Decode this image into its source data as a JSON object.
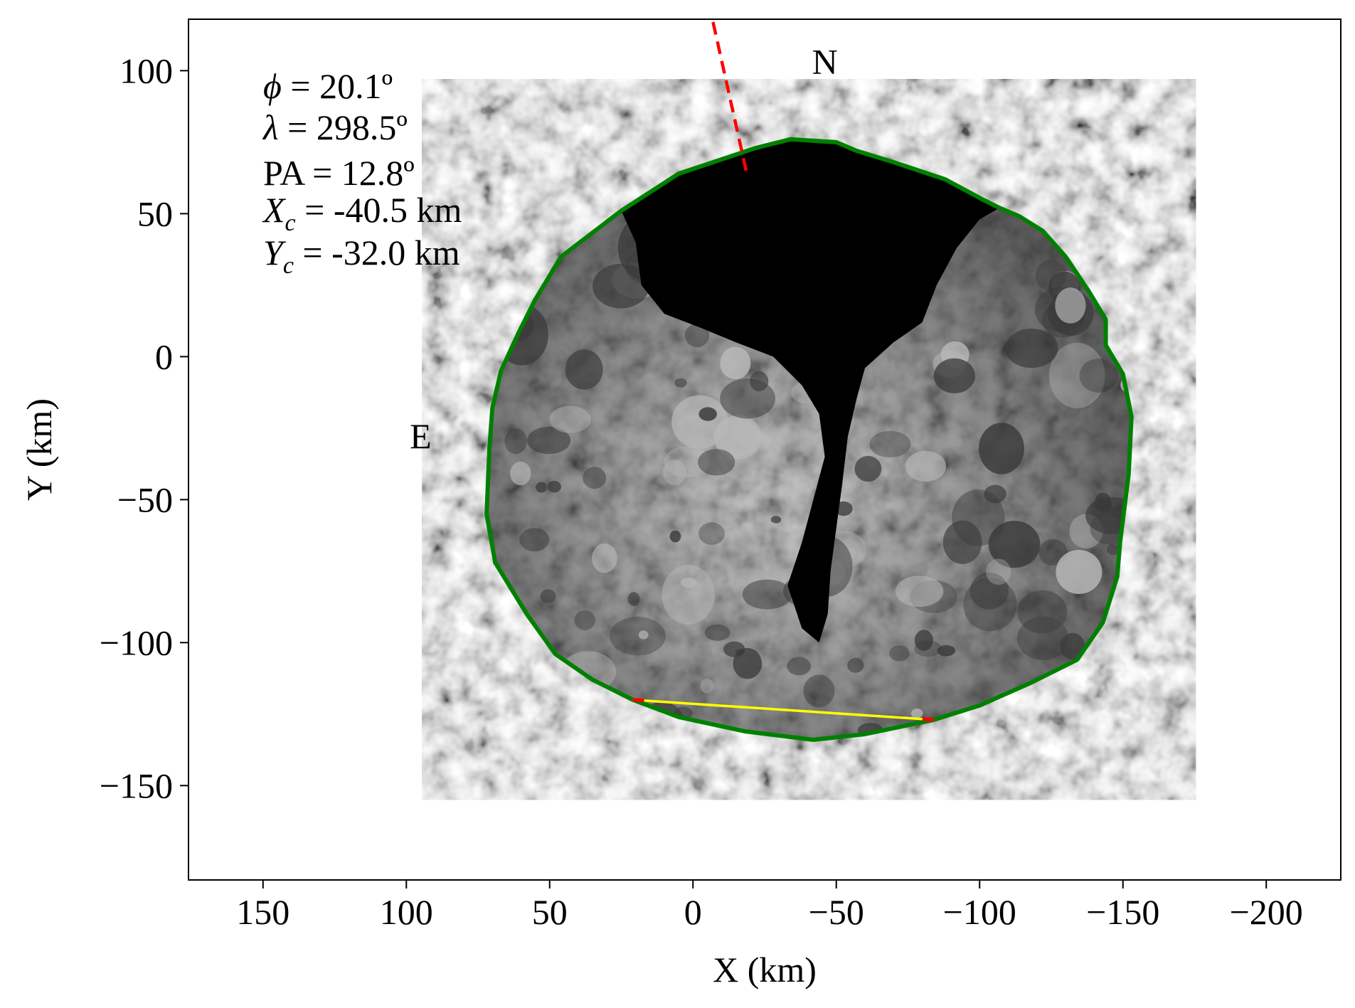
{
  "chart_data": {
    "type": "scatter",
    "title": "",
    "xlabel": "X (km)",
    "ylabel": "Y (km)",
    "xlim": [
      176,
      -226
    ],
    "ylim": [
      -183,
      118
    ],
    "x_ticks": [
      {
        "value": 150,
        "label": "150"
      },
      {
        "value": 100,
        "label": "100"
      },
      {
        "value": 50,
        "label": "50"
      },
      {
        "value": 0,
        "label": "0"
      },
      {
        "value": -50,
        "label": "−50"
      },
      {
        "value": -100,
        "label": "−100"
      },
      {
        "value": -150,
        "label": "−150"
      },
      {
        "value": -200,
        "label": "−200"
      }
    ],
    "y_ticks": [
      {
        "value": 100,
        "label": "100"
      },
      {
        "value": 50,
        "label": "50"
      },
      {
        "value": 0,
        "label": "0"
      },
      {
        "value": -50,
        "label": "−50"
      },
      {
        "value": -100,
        "label": "−100"
      },
      {
        "value": -150,
        "label": "−150"
      }
    ],
    "grid": false,
    "annotations": {
      "phi": {
        "symbol": "ϕ",
        "text": " = 20.1º"
      },
      "lambda": {
        "symbol": "λ",
        "text": " = 298.5º"
      },
      "pa": {
        "text": "PA = 12.8º"
      },
      "xc": {
        "symbol": "X",
        "sub": "c",
        "text": " = -40.5 km"
      },
      "yc": {
        "symbol": "Y",
        "sub": "c",
        "text": " = -32.0 km"
      },
      "north": {
        "label": "N",
        "x": -46,
        "y": 103
      },
      "east": {
        "label": "E",
        "x": 95,
        "y": -28
      }
    },
    "pole_line": {
      "color": "#ff0000",
      "style": "dashed",
      "points": [
        [
          -7,
          117
        ],
        [
          -19,
          63
        ]
      ]
    },
    "chord": {
      "color": "#ffff00",
      "endcap_color": "#ff0000",
      "points": [
        [
          21,
          -120
        ],
        [
          -84,
          -127
        ]
      ]
    },
    "limb_contour": {
      "color": "#008000",
      "points": [
        [
          -34,
          76
        ],
        [
          -50,
          75
        ],
        [
          -57,
          72
        ],
        [
          -70,
          68
        ],
        [
          -88,
          62
        ],
        [
          -101,
          55
        ],
        [
          -107,
          52
        ],
        [
          -114,
          49
        ],
        [
          -122,
          44
        ],
        [
          -130,
          35
        ],
        [
          -138,
          23
        ],
        [
          -144,
          13
        ],
        [
          -144,
          4
        ],
        [
          -150,
          -6
        ],
        [
          -153,
          -21
        ],
        [
          -152,
          -41
        ],
        [
          -149,
          -65
        ],
        [
          -148,
          -77
        ],
        [
          -143,
          -93
        ],
        [
          -134,
          -106
        ],
        [
          -118,
          -114
        ],
        [
          -100,
          -122
        ],
        [
          -84,
          -127
        ],
        [
          -60,
          -132
        ],
        [
          -42,
          -134
        ],
        [
          -18,
          -131
        ],
        [
          5,
          -126
        ],
        [
          21,
          -120
        ],
        [
          35,
          -113
        ],
        [
          48,
          -104
        ],
        [
          58,
          -90
        ],
        [
          69,
          -72
        ],
        [
          72,
          -55
        ],
        [
          71,
          -32
        ],
        [
          70,
          -18
        ],
        [
          67,
          -5
        ],
        [
          61,
          8
        ],
        [
          55,
          20
        ],
        [
          46,
          35
        ],
        [
          25,
          51
        ],
        [
          5,
          64
        ],
        [
          -22,
          73
        ]
      ]
    },
    "shadow_region": {
      "color": "#000000",
      "points": [
        [
          -34,
          76
        ],
        [
          -50,
          75
        ],
        [
          -70,
          68
        ],
        [
          -88,
          62
        ],
        [
          -101,
          55
        ],
        [
          -107,
          52
        ],
        [
          -100,
          48
        ],
        [
          -92,
          38
        ],
        [
          -85,
          25
        ],
        [
          -80,
          12
        ],
        [
          -70,
          5
        ],
        [
          -60,
          -4
        ],
        [
          -57,
          -15
        ],
        [
          -54,
          -28
        ],
        [
          -52,
          -45
        ],
        [
          -50,
          -60
        ],
        [
          -48,
          -75
        ],
        [
          -47,
          -90
        ],
        [
          -44,
          -100
        ],
        [
          -38,
          -95
        ],
        [
          -33,
          -80
        ],
        [
          -38,
          -65
        ],
        [
          -42,
          -50
        ],
        [
          -46,
          -35
        ],
        [
          -44,
          -20
        ],
        [
          -38,
          -10
        ],
        [
          -28,
          0
        ],
        [
          -15,
          5
        ],
        [
          -3,
          10
        ],
        [
          10,
          15
        ],
        [
          18,
          25
        ],
        [
          20,
          40
        ],
        [
          25,
          51
        ],
        [
          5,
          64
        ],
        [
          -22,
          73
        ]
      ]
    },
    "colors": {
      "limb": "#008000",
      "pole_line": "#ff0000",
      "chord": "#ffff00",
      "surface_light": "#b9b9b9",
      "surface_dark": "#3a3a3a",
      "shadow": "#000000"
    }
  }
}
